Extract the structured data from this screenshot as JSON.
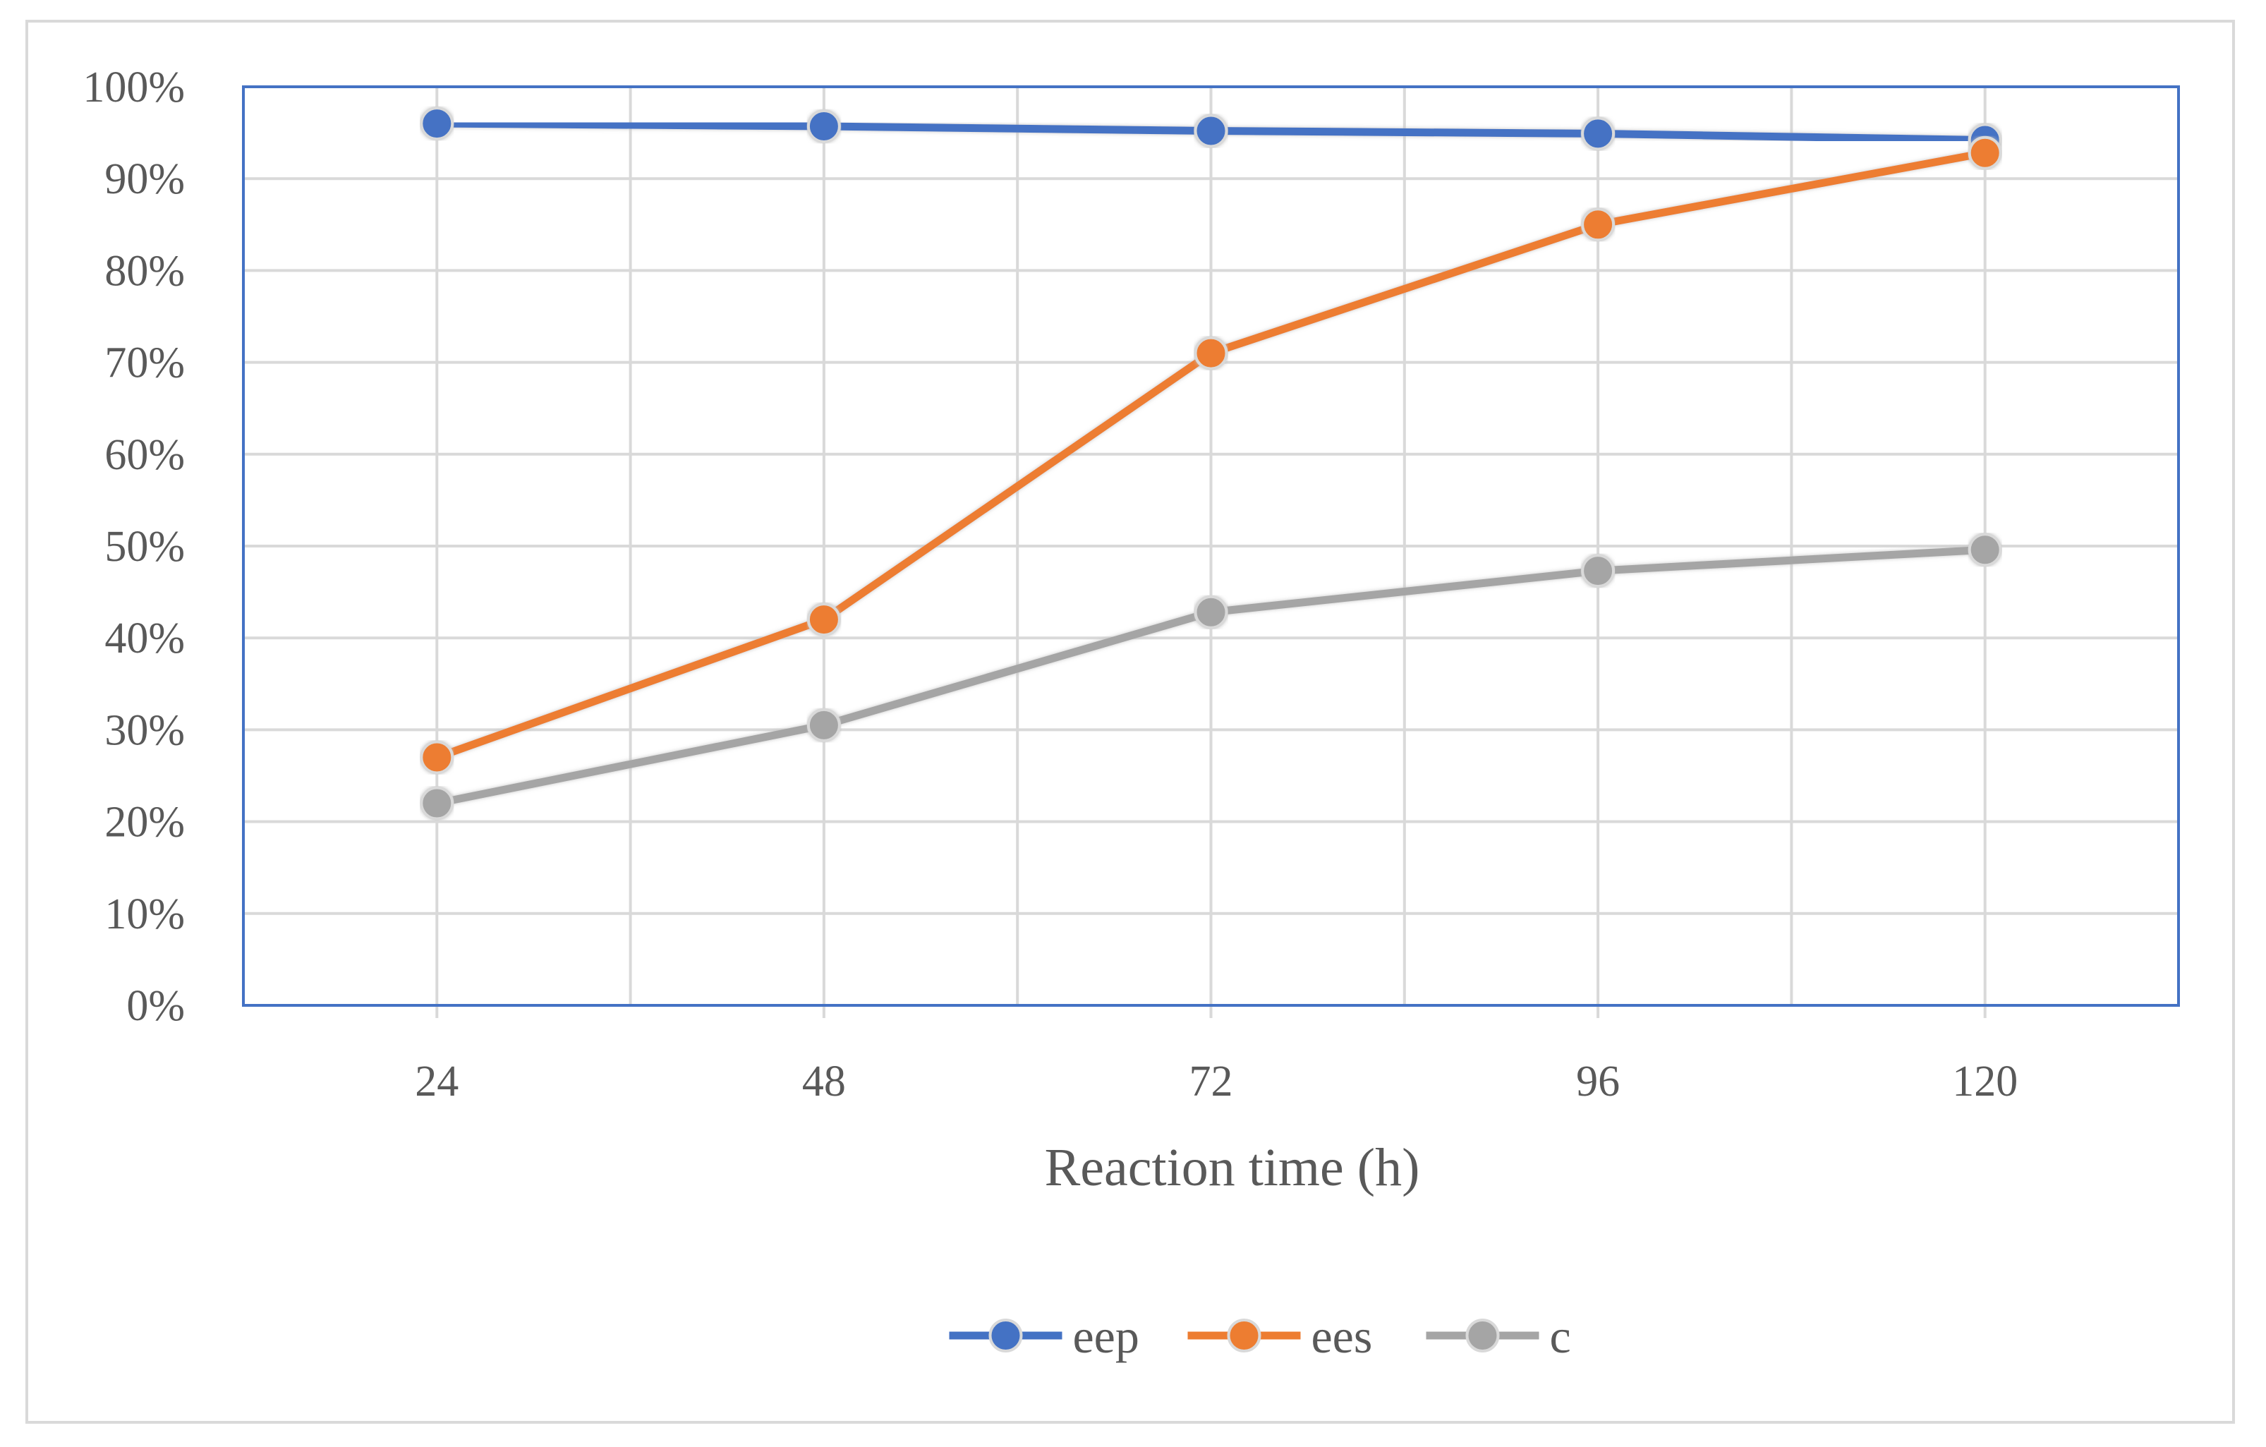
{
  "colors": {
    "eep": "#4472c4",
    "ees": "#ed7d31",
    "c": "#a5a5a5",
    "plot_border": "#4472c4",
    "grid": "#d9d9d9",
    "text": "#595959"
  },
  "chart_data": {
    "type": "line",
    "title": "",
    "xlabel": "Reaction time (h)",
    "ylabel": "",
    "categories": [
      "24",
      "48",
      "72",
      "96",
      "120"
    ],
    "ylim": [
      0,
      100
    ],
    "y_ticks": [
      "0%",
      "10%",
      "20%",
      "30%",
      "40%",
      "50%",
      "60%",
      "70%",
      "80%",
      "90%",
      "100%"
    ],
    "grid": true,
    "legend_position": "bottom",
    "series": [
      {
        "name": "eep",
        "values": [
          96,
          95.7,
          95.2,
          94.9,
          94.2
        ]
      },
      {
        "name": "ees",
        "values": [
          27,
          42,
          71,
          85,
          92.8
        ]
      },
      {
        "name": "c",
        "values": [
          22,
          30.5,
          42.8,
          47.3,
          49.6
        ]
      }
    ]
  }
}
